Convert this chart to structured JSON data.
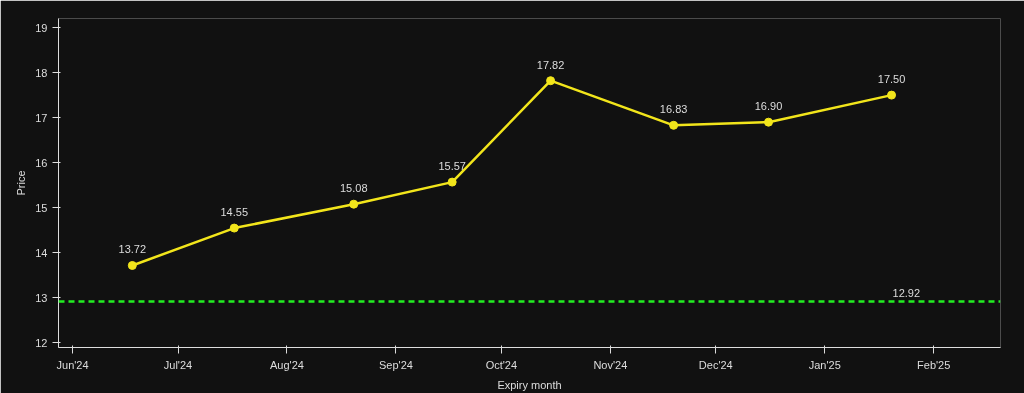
{
  "chart_data": {
    "type": "line",
    "xlabel": "Expiry month",
    "ylabel": "Price",
    "x": [
      "2024-06-18",
      "2024-07-17",
      "2024-08-20",
      "2024-09-17",
      "2024-10-15",
      "2024-11-19",
      "2024-12-16",
      "2025-01-20"
    ],
    "series": [
      {
        "color": "#f2e51b",
        "values": [
          13.72,
          14.55,
          15.08,
          15.57,
          17.82,
          16.83,
          16.9,
          17.5
        ],
        "value_labels": [
          "13.72",
          "14.55",
          "15.08",
          "15.57",
          "17.82",
          "16.83",
          "16.90",
          "17.50"
        ]
      }
    ],
    "xlim": [
      "2024-05-28",
      "2025-02-20"
    ],
    "xticks": [
      {
        "value": "2024-06-01",
        "label": "Jun'24"
      },
      {
        "value": "2024-07-01",
        "label": "Jul'24"
      },
      {
        "value": "2024-08-01",
        "label": "Aug'24"
      },
      {
        "value": "2024-09-01",
        "label": "Sep'24"
      },
      {
        "value": "2024-10-01",
        "label": "Oct'24"
      },
      {
        "value": "2024-11-01",
        "label": "Nov'24"
      },
      {
        "value": "2024-12-01",
        "label": "Dec'24"
      },
      {
        "value": "2025-01-01",
        "label": "Jan'25"
      },
      {
        "value": "2025-02-01",
        "label": "Feb'25"
      }
    ],
    "ylim": [
      11.9,
      19.2
    ],
    "yticks": [
      12,
      13,
      14,
      15,
      16,
      17,
      18,
      19
    ],
    "ref_lines": [
      {
        "axis": "y",
        "value": 12.92,
        "label": "12.92",
        "color": "#22ee22",
        "line_style": "dashed"
      }
    ],
    "marker": "circle",
    "line_style": "solid",
    "grid": false
  }
}
